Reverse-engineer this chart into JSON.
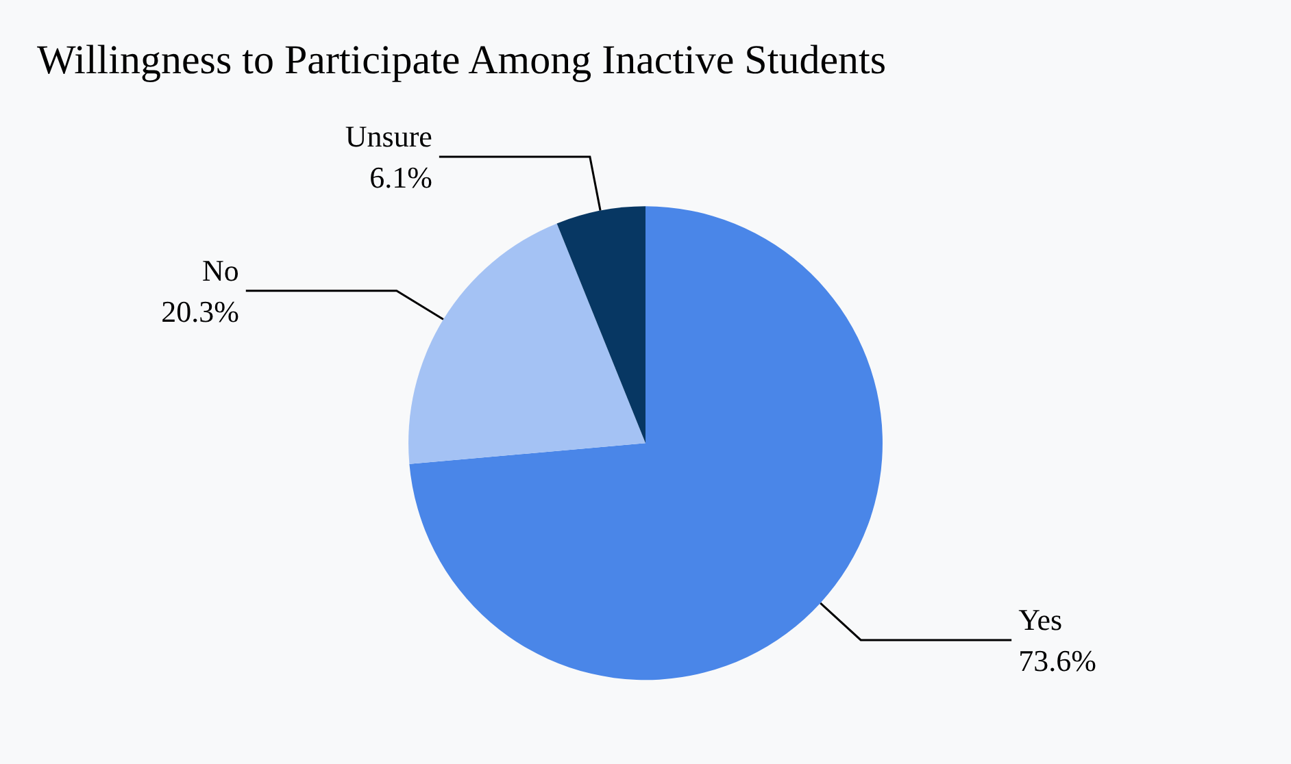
{
  "chart_data": {
    "type": "pie",
    "title": "Willingness to Participate Among Inactive Students",
    "categories": [
      "Yes",
      "No",
      "Unsure"
    ],
    "values": [
      73.6,
      20.3,
      6.1
    ],
    "value_labels": [
      "73.6%",
      "20.3%",
      "6.1%"
    ],
    "colors": [
      "#4a86e8",
      "#a4c2f4",
      "#073763"
    ],
    "legend": false
  }
}
